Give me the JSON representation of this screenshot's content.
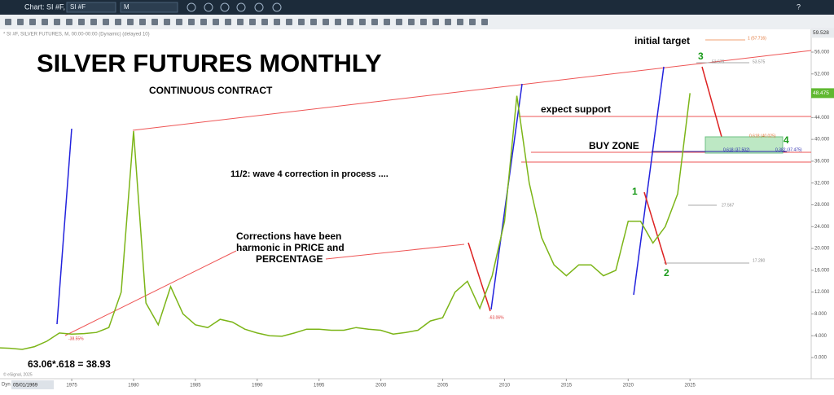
{
  "window": {
    "title": "Chart: SI #F, M",
    "symbol": "SI #F",
    "interval": "M",
    "help": "?"
  },
  "chart_header": "* SI #F, SILVER FUTURES, M, 00:00-00:00 (Dynamic) (delayed 10)",
  "annotations": {
    "title": "SILVER FUTURES MONTHLY",
    "subtitle": "CONTINUOUS CONTRACT",
    "initial_target": "initial target",
    "expect_support": "expect support",
    "buy_zone": "BUY ZONE",
    "wave4_note": "11/2: wave 4 correction in process ....",
    "corrections": [
      "Corrections have been",
      "harmonic in PRICE and",
      "PERCENTAGE"
    ],
    "formula": "63.06*.618 = 38.93",
    "wave_1": "1",
    "wave_2": "2",
    "wave_3": "3",
    "wave_4": "4",
    "drop_1980": "-38.55%",
    "drop_2008": "-63.06%",
    "target_level": "1 (57.716)",
    "level_53": "53.575",
    "level_53b": "53.575",
    "level_27": "27.567",
    "level_17": "17.280",
    "fib_40": "0.618 (40.025)",
    "fib_37": "0.618 (37.502)",
    "fib_37b": "0.382 (37.475)",
    "copyright": "© eSignal, 2025",
    "dyn": "Dyn",
    "start_date": "05/01/1969"
  },
  "chart_data": {
    "type": "line",
    "color": "#7cb518",
    "x": [
      1969,
      1970,
      1971,
      1972,
      1973,
      1974,
      1975,
      1976,
      1977,
      1978,
      1979,
      1980,
      1981,
      1982,
      1983,
      1984,
      1985,
      1986,
      1987,
      1988,
      1989,
      1990,
      1991,
      1992,
      1993,
      1994,
      1995,
      1996,
      1997,
      1998,
      1999,
      2000,
      2001,
      2002,
      2003,
      2004,
      2005,
      2006,
      2007,
      2008,
      2009,
      2010,
      2011,
      2012,
      2013,
      2014,
      2015,
      2016,
      2017,
      2018,
      2019,
      2020,
      2021,
      2022,
      2023,
      2024,
      2025
    ],
    "values": [
      1.8,
      1.7,
      1.5,
      2.0,
      3.0,
      4.5,
      4.3,
      4.4,
      4.6,
      5.5,
      12,
      41.5,
      10,
      6,
      13,
      8,
      6,
      5.5,
      7,
      6.5,
      5.2,
      4.5,
      4.0,
      3.9,
      4.5,
      5.2,
      5.2,
      5.0,
      5.0,
      5.5,
      5.2,
      5.0,
      4.3,
      4.6,
      5.0,
      6.7,
      7.3,
      12,
      14,
      9,
      15,
      25,
      48,
      32,
      22,
      17,
      15,
      17,
      17,
      15,
      16,
      25,
      25,
      21,
      24,
      30,
      48.475
    ],
    "xlim": [
      1969.2,
      2034.8
    ],
    "ylim": [
      -3.88,
      60.18
    ],
    "xticks": [
      1975,
      1980,
      1985,
      1990,
      1995,
      2000,
      2005,
      2010,
      2015,
      2020,
      2025
    ],
    "yticks": [
      {
        "value": 0,
        "label": "0.000"
      },
      {
        "value": 4,
        "label": "4.000"
      },
      {
        "value": 8,
        "label": "8.000"
      },
      {
        "value": 12,
        "label": "12.000"
      },
      {
        "value": 16,
        "label": "16.000"
      },
      {
        "value": 20,
        "label": "20.000"
      },
      {
        "value": 24,
        "label": "24.000"
      },
      {
        "value": 28,
        "label": "28.000"
      },
      {
        "value": 32,
        "label": "32.000"
      },
      {
        "value": 36,
        "label": "36.000"
      },
      {
        "value": 40,
        "label": "40.000"
      },
      {
        "value": 44,
        "label": "44.000"
      },
      {
        "value": 48,
        "label": "48.000"
      },
      {
        "value": 52,
        "label": "52.000"
      },
      {
        "value": 56,
        "label": "56.000"
      }
    ],
    "last_price": 48.475,
    "top_price": 59.528
  }
}
